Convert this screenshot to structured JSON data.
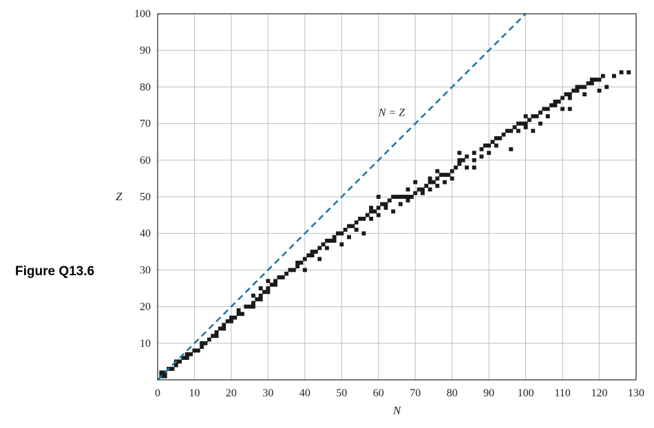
{
  "figure_label": "Figure Q13.6",
  "colors": {
    "accent": "#1f78a8",
    "points": "#1a1a1a",
    "grid": "#bdbdbd",
    "frame": "#333333"
  },
  "chart_data": {
    "type": "scatter",
    "title": "",
    "xlabel": "N",
    "ylabel": "Z",
    "xlim": [
      0,
      130
    ],
    "ylim": [
      0,
      100
    ],
    "xticks": [
      "0",
      "10",
      "20",
      "30",
      "40",
      "50",
      "60",
      "70",
      "80",
      "90",
      "100",
      "110",
      "120",
      "130"
    ],
    "yticks": [
      "10",
      "20",
      "30",
      "40",
      "50",
      "60",
      "70",
      "80",
      "90",
      "100"
    ],
    "grid": true,
    "annotation": "N = Z",
    "reference_line": {
      "name": "N = Z",
      "style": "dashed",
      "x": [
        0,
        100
      ],
      "y": [
        0,
        100
      ]
    },
    "series": [
      {
        "points": [
          [
            1,
            1
          ],
          [
            2,
            1
          ],
          [
            1,
            2
          ],
          [
            2,
            2
          ],
          [
            3,
            3
          ],
          [
            4,
            3
          ],
          [
            5,
            4
          ],
          [
            5,
            5
          ],
          [
            6,
            5
          ],
          [
            7,
            6
          ],
          [
            8,
            6
          ],
          [
            8,
            7
          ],
          [
            9,
            7
          ],
          [
            10,
            8
          ],
          [
            11,
            8
          ],
          [
            12,
            9
          ],
          [
            12,
            10
          ],
          [
            13,
            10
          ],
          [
            14,
            11
          ],
          [
            15,
            12
          ],
          [
            16,
            12
          ],
          [
            16,
            13
          ],
          [
            17,
            14
          ],
          [
            18,
            14
          ],
          [
            18,
            15
          ],
          [
            19,
            16
          ],
          [
            20,
            16
          ],
          [
            20,
            17
          ],
          [
            21,
            17
          ],
          [
            22,
            18
          ],
          [
            23,
            18
          ],
          [
            22,
            19
          ],
          [
            24,
            20
          ],
          [
            25,
            20
          ],
          [
            26,
            21
          ],
          [
            27,
            22
          ],
          [
            28,
            22
          ],
          [
            28,
            23
          ],
          [
            29,
            24
          ],
          [
            30,
            24
          ],
          [
            30,
            25
          ],
          [
            31,
            26
          ],
          [
            32,
            26
          ],
          [
            32,
            27
          ],
          [
            33,
            28
          ],
          [
            34,
            28
          ],
          [
            35,
            29
          ],
          [
            36,
            30
          ],
          [
            37,
            30
          ],
          [
            38,
            31
          ],
          [
            38,
            32
          ],
          [
            39,
            32
          ],
          [
            40,
            33
          ],
          [
            41,
            34
          ],
          [
            42,
            34
          ],
          [
            43,
            35
          ],
          [
            44,
            36
          ],
          [
            45,
            37
          ],
          [
            46,
            38
          ],
          [
            47,
            38
          ],
          [
            48,
            39
          ],
          [
            49,
            40
          ],
          [
            50,
            40
          ],
          [
            51,
            41
          ],
          [
            52,
            42
          ],
          [
            53,
            42
          ],
          [
            54,
            43
          ],
          [
            55,
            44
          ],
          [
            56,
            44
          ],
          [
            57,
            45
          ],
          [
            58,
            46
          ],
          [
            59,
            46
          ],
          [
            60,
            47
          ],
          [
            61,
            48
          ],
          [
            62,
            48
          ],
          [
            63,
            49
          ],
          [
            64,
            50
          ],
          [
            65,
            50
          ],
          [
            66,
            50
          ],
          [
            67,
            50
          ],
          [
            68,
            50
          ],
          [
            69,
            50
          ],
          [
            70,
            51
          ],
          [
            71,
            52
          ],
          [
            72,
            52
          ],
          [
            73,
            53
          ],
          [
            74,
            54
          ],
          [
            75,
            54
          ],
          [
            76,
            55
          ],
          [
            77,
            56
          ],
          [
            78,
            56
          ],
          [
            79,
            56
          ],
          [
            80,
            57
          ],
          [
            81,
            58
          ],
          [
            82,
            59
          ],
          [
            82,
            60
          ],
          [
            83,
            60
          ],
          [
            84,
            61
          ],
          [
            86,
            62
          ],
          [
            88,
            63
          ],
          [
            89,
            64
          ],
          [
            90,
            64
          ],
          [
            91,
            65
          ],
          [
            92,
            66
          ],
          [
            93,
            66
          ],
          [
            94,
            67
          ],
          [
            95,
            68
          ],
          [
            96,
            68
          ],
          [
            97,
            69
          ],
          [
            98,
            70
          ],
          [
            99,
            70
          ],
          [
            100,
            70
          ],
          [
            101,
            71
          ],
          [
            102,
            72
          ],
          [
            103,
            72
          ],
          [
            104,
            73
          ],
          [
            105,
            74
          ],
          [
            106,
            74
          ],
          [
            107,
            75
          ],
          [
            108,
            76
          ],
          [
            109,
            76
          ],
          [
            110,
            77
          ],
          [
            111,
            78
          ],
          [
            112,
            78
          ],
          [
            113,
            79
          ],
          [
            114,
            80
          ],
          [
            115,
            80
          ],
          [
            116,
            80
          ],
          [
            117,
            81
          ],
          [
            118,
            82
          ],
          [
            119,
            82
          ],
          [
            120,
            82
          ],
          [
            121,
            83
          ],
          [
            26,
            20
          ],
          [
            26,
            23
          ],
          [
            28,
            25
          ],
          [
            30,
            27
          ],
          [
            40,
            30
          ],
          [
            42,
            35
          ],
          [
            44,
            33
          ],
          [
            46,
            36
          ],
          [
            48,
            38
          ],
          [
            50,
            37
          ],
          [
            52,
            39
          ],
          [
            54,
            41
          ],
          [
            56,
            40
          ],
          [
            58,
            44
          ],
          [
            58,
            47
          ],
          [
            60,
            45
          ],
          [
            62,
            47
          ],
          [
            64,
            46
          ],
          [
            66,
            48
          ],
          [
            68,
            49
          ],
          [
            70,
            54
          ],
          [
            72,
            51
          ],
          [
            74,
            52
          ],
          [
            76,
            53
          ],
          [
            78,
            54
          ],
          [
            82,
            62
          ],
          [
            80,
            55
          ],
          [
            84,
            58
          ],
          [
            86,
            60
          ],
          [
            88,
            61
          ],
          [
            90,
            62
          ],
          [
            92,
            64
          ],
          [
            96,
            63
          ],
          [
            98,
            68
          ],
          [
            100,
            69
          ],
          [
            102,
            68
          ],
          [
            104,
            70
          ],
          [
            106,
            72
          ],
          [
            108,
            75
          ],
          [
            110,
            74
          ],
          [
            112,
            77
          ],
          [
            114,
            79
          ],
          [
            116,
            78
          ],
          [
            118,
            81
          ],
          [
            120,
            79
          ],
          [
            122,
            80
          ],
          [
            124,
            83
          ],
          [
            126,
            84
          ],
          [
            128,
            84
          ],
          [
            76,
            57
          ],
          [
            86,
            58
          ],
          [
            100,
            72
          ],
          [
            112,
            74
          ],
          [
            68,
            52
          ],
          [
            60,
            50
          ],
          [
            74,
            55
          ]
        ]
      }
    ]
  }
}
